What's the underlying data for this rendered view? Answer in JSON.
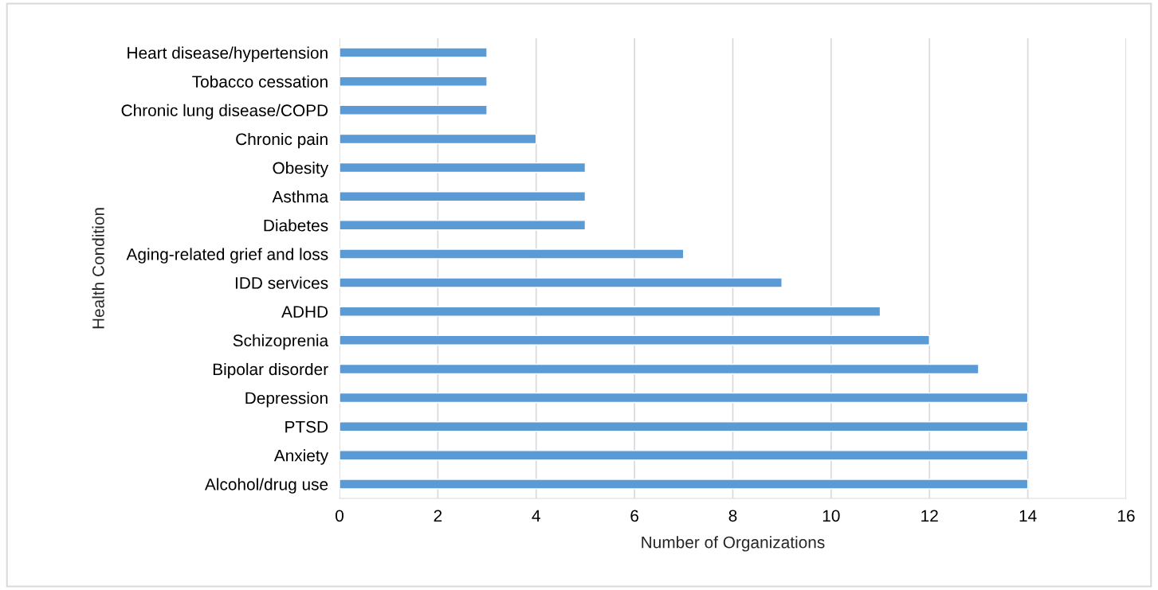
{
  "chart_data": {
    "type": "bar",
    "orientation": "horizontal",
    "xlabel": "Number of Organizations",
    "ylabel": "Health Condition",
    "categories": [
      "Heart disease/hypertension",
      "Tobacco cessation",
      "Chronic lung disease/COPD",
      "Chronic pain",
      "Obesity",
      "Asthma",
      "Diabetes",
      "Aging-related grief and loss",
      "IDD services",
      "ADHD",
      "Schizoprenia",
      "Bipolar disorder",
      "Depression",
      "PTSD",
      "Anxiety",
      "Alcohol/drug use"
    ],
    "values": [
      3,
      3,
      3,
      4,
      5,
      5,
      5,
      7,
      9,
      11,
      12,
      13,
      14,
      14,
      14,
      14
    ],
    "color": "#5b9bd5",
    "xlim": [
      0,
      16
    ],
    "xticks": [
      0,
      2,
      4,
      6,
      8,
      10,
      12,
      14,
      16
    ],
    "grid": "x",
    "legend": false
  }
}
